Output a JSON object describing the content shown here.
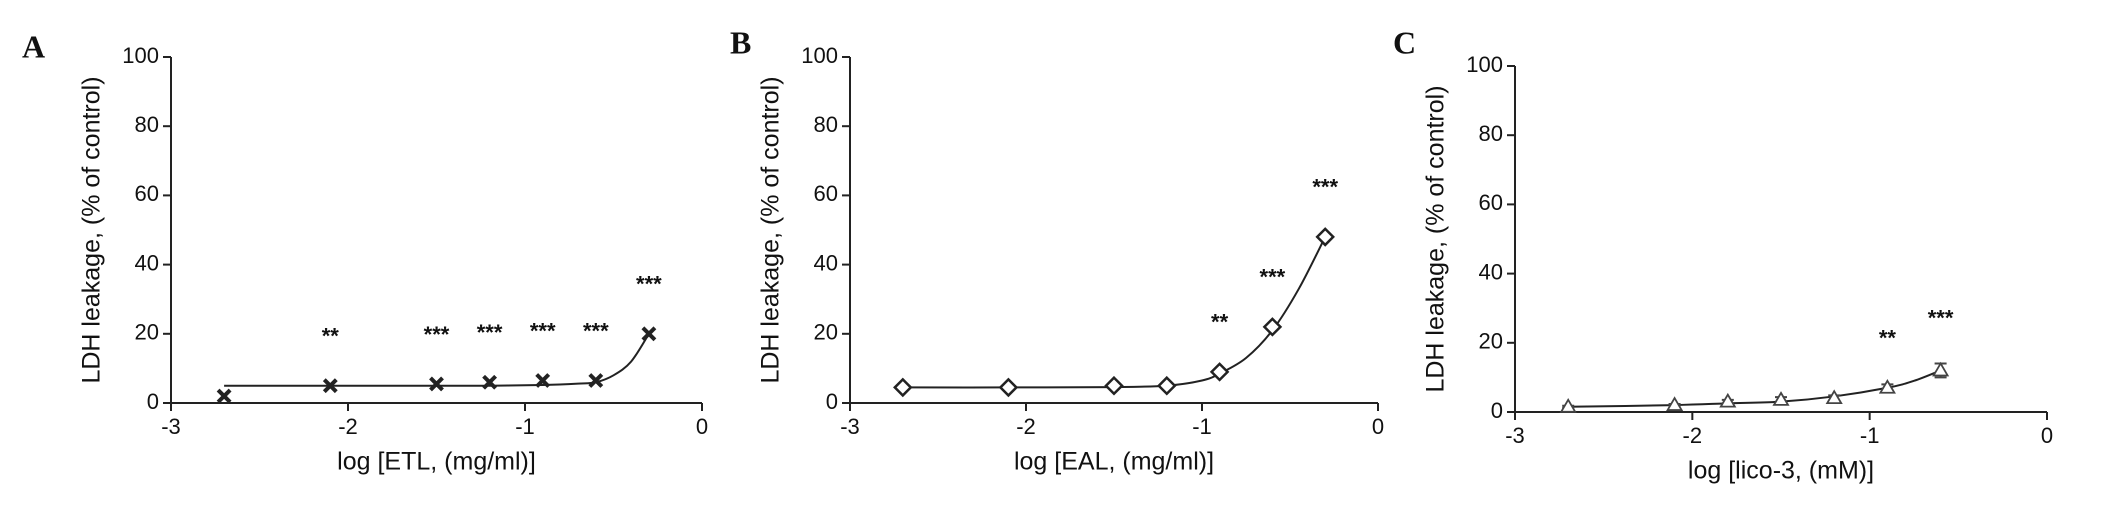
{
  "chart_data": [
    {
      "type": "scatter",
      "panel_label": "A",
      "x": [
        -2.7,
        -2.1,
        -1.5,
        -1.2,
        -0.9,
        -0.6,
        -0.3
      ],
      "series": [
        {
          "color": "#222222",
          "marker": "x",
          "values": [
            2,
            5,
            5.5,
            6,
            6.5,
            6.5,
            20
          ]
        }
      ],
      "significance": [
        null,
        "**",
        "***",
        "***",
        "***",
        "***",
        "***"
      ],
      "fit": {
        "x": [
          -2.7,
          -2.1,
          -1.5,
          -1.2,
          -0.9,
          -0.7,
          -0.6,
          -0.5,
          -0.4,
          -0.3
        ],
        "values": [
          5,
          5,
          5,
          5,
          5.2,
          5.6,
          6,
          8,
          12,
          20
        ]
      },
      "xlabel": "log [ETL, (mg/ml)]",
      "ylabel": "LDH leakage, (% of control)",
      "xlim": [
        -3,
        0
      ],
      "ylim": [
        0,
        100
      ],
      "xticks": [
        -3,
        -2,
        -1,
        0
      ],
      "yticks": [
        0,
        20,
        40,
        60,
        80,
        100
      ]
    },
    {
      "type": "scatter",
      "panel_label": "B",
      "x": [
        -2.7,
        -2.1,
        -1.5,
        -1.2,
        -0.9,
        -0.6,
        -0.3
      ],
      "series": [
        {
          "color": "#222222",
          "marker": "diamond",
          "values": [
            4.5,
            4.5,
            5,
            5,
            9,
            22,
            48
          ]
        }
      ],
      "significance": [
        null,
        null,
        null,
        null,
        "**",
        "***",
        "***"
      ],
      "fit": {
        "x": [
          -2.7,
          -2.1,
          -1.5,
          -1.2,
          -1.0,
          -0.9,
          -0.75,
          -0.6,
          -0.45,
          -0.3
        ],
        "values": [
          4.5,
          4.5,
          4.6,
          5,
          6.5,
          8.5,
          13,
          21,
          33,
          48
        ]
      },
      "xlabel": "log [EAL, (mg/ml)]",
      "ylabel": "LDH leakage, (% of control)",
      "xlim": [
        -3,
        0
      ],
      "ylim": [
        0,
        100
      ],
      "xticks": [
        -3,
        -2,
        -1,
        0
      ],
      "yticks": [
        0,
        20,
        40,
        60,
        80,
        100
      ]
    },
    {
      "type": "scatter",
      "panel_label": "C",
      "x": [
        -2.7,
        -2.1,
        -1.8,
        -1.5,
        -1.2,
        -0.9,
        -0.6
      ],
      "series": [
        {
          "color": "#444444",
          "marker": "triangle",
          "values": [
            1.5,
            2,
            3,
            3.5,
            4,
            7,
            12
          ],
          "errors": [
            0.3,
            0.3,
            0.5,
            0.8,
            0.8,
            1,
            2
          ]
        }
      ],
      "significance": [
        null,
        null,
        null,
        null,
        null,
        "**",
        "***"
      ],
      "fit": {
        "x": [
          -2.7,
          -2.1,
          -1.8,
          -1.5,
          -1.2,
          -0.9,
          -0.75,
          -0.6
        ],
        "values": [
          1.5,
          2,
          2.5,
          3,
          4.5,
          7,
          9,
          12
        ]
      },
      "xlabel": "log [lico-3, (mM)]",
      "ylabel": "LDH leakage, (% of control)",
      "xlim": [
        -3,
        0
      ],
      "ylim": [
        0,
        100
      ],
      "xticks": [
        -3,
        -2,
        -1,
        0
      ],
      "yticks": [
        0,
        20,
        40,
        60,
        80,
        100
      ]
    }
  ]
}
